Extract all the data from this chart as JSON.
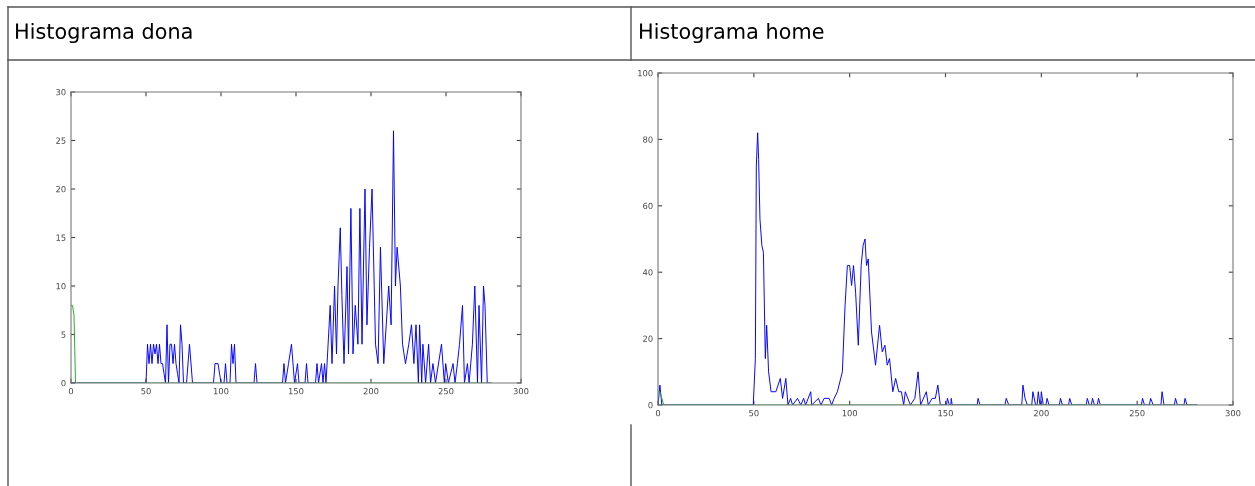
{
  "chart_data": [
    {
      "type": "line",
      "title": "Histograma dona",
      "xlim": [
        0,
        300
      ],
      "ylim": [
        0,
        30
      ],
      "xticks": [
        0,
        50,
        100,
        150,
        200,
        250,
        300
      ],
      "yticks": [
        0,
        5,
        10,
        15,
        20,
        25,
        30
      ],
      "grid": false,
      "series": [
        {
          "color": "#0000ff",
          "x": [
            0,
            50,
            51,
            52,
            53,
            54,
            55,
            56,
            57,
            58,
            59,
            60,
            61,
            62,
            63,
            64,
            65,
            66,
            67,
            68,
            69,
            70,
            71,
            72,
            73,
            74,
            75,
            77,
            79,
            81,
            95,
            96,
            98,
            100,
            102,
            103,
            104,
            106,
            107,
            108,
            109,
            110,
            122,
            123,
            124,
            141,
            142,
            143,
            145,
            147,
            149,
            151,
            152,
            156,
            157,
            158,
            163,
            164,
            165,
            167,
            168,
            169,
            170,
            172.8,
            174,
            175.7,
            177,
            178,
            179.5,
            180.6,
            182,
            184,
            185,
            186.6,
            188,
            189.5,
            191.3,
            192.6,
            194,
            196,
            197.3,
            199,
            200.7,
            203,
            204.7,
            206.3,
            208.5,
            211.8,
            213.4,
            215,
            216.3,
            217.4,
            219.6,
            221,
            223,
            225.2,
            227,
            228.6,
            230,
            231.6,
            232.4,
            233.8,
            234.6,
            236.4,
            238.4,
            239.7,
            241.3,
            243,
            247,
            248.9,
            249.8,
            251.6,
            254.7,
            256,
            257.6,
            259,
            261,
            262.3,
            264.3,
            265.4,
            267.6,
            269.2,
            271,
            272,
            273.7,
            275,
            276,
            277.5,
            280
          ],
          "values": [
            0,
            0,
            4,
            2,
            4,
            2,
            4,
            3,
            4,
            2,
            4,
            2,
            2,
            1,
            0,
            6,
            0,
            4,
            4,
            2,
            4,
            2,
            1,
            0,
            6,
            4,
            0,
            0,
            4,
            0,
            0,
            2,
            2,
            0,
            0,
            2,
            0,
            0,
            4,
            2,
            4,
            0,
            0,
            2,
            0,
            0,
            2,
            0,
            2,
            4,
            0,
            2,
            0,
            0,
            2,
            0,
            0,
            2,
            0,
            2,
            0,
            2,
            0,
            8,
            2,
            10,
            3,
            10,
            16,
            9,
            2,
            12,
            3,
            18,
            3,
            8,
            4,
            18,
            4,
            20,
            6,
            14,
            20,
            4,
            2,
            14,
            2,
            10,
            6,
            26,
            10,
            14,
            10,
            4,
            2,
            4,
            6,
            2,
            6,
            0,
            6,
            0,
            4,
            0,
            4,
            0,
            2,
            0,
            4,
            0,
            2,
            0,
            2,
            0,
            2,
            4,
            8,
            0,
            2,
            0,
            4,
            10,
            0,
            8,
            0,
            10,
            8,
            0,
            0
          ]
        },
        {
          "color": "#22aa22",
          "x": [
            0,
            1,
            2,
            3,
            278
          ],
          "values": [
            8,
            8,
            7,
            0,
            0
          ]
        }
      ]
    },
    {
      "type": "line",
      "title": "Histograma home",
      "xlim": [
        0,
        300
      ],
      "ylim": [
        0,
        100
      ],
      "xticks": [
        0,
        50,
        100,
        150,
        200,
        250,
        300
      ],
      "yticks": [
        0,
        20,
        40,
        60,
        80,
        100
      ],
      "grid": false,
      "series": [
        {
          "color": "#0000ff",
          "x": [
            0,
            1,
            2,
            49.7,
            50.8,
            51.3,
            52,
            52.5,
            53.2,
            54.2,
            55,
            56,
            56.7,
            57.7,
            59,
            61.5,
            63.8,
            65,
            66.7,
            67.8,
            69.2,
            70.2,
            72.8,
            74.5,
            76,
            77,
            79.7,
            80.2,
            83.7,
            85,
            86.7,
            89.3,
            90.6,
            91.9,
            93.6,
            96.2,
            97.6,
            98.8,
            100,
            101,
            102,
            103.1,
            104.5,
            106,
            107,
            108,
            108.8,
            109.7,
            111.4,
            113.5,
            115.6,
            117,
            118.4,
            119.6,
            120.8,
            122.5,
            124,
            125.6,
            127,
            128.2,
            129,
            131.7,
            134,
            135.7,
            137,
            140,
            141,
            143,
            144.7,
            146,
            147.3,
            150.5,
            151,
            152,
            152.8,
            153,
            153.5,
            166.5,
            167,
            168,
            181,
            181.7,
            183,
            189.8,
            190.4,
            191.5,
            192.7,
            195,
            195.6,
            197,
            197.8,
            198.4,
            199.3,
            199.6,
            200,
            201,
            202.4,
            203,
            204,
            209.4,
            210,
            211,
            214.2,
            214.8,
            215.9,
            223.4,
            224,
            225,
            226.1,
            226.7,
            227.7,
            229.2,
            229.8,
            230.8,
            252.2,
            252.8,
            253.8,
            256.4,
            257,
            258.4,
            262.4,
            263,
            264,
            269.4,
            270,
            271,
            274.4,
            275,
            276,
            281
          ],
          "values": [
            0,
            6,
            0,
            0,
            14,
            72,
            82,
            74,
            56,
            48,
            46,
            14,
            24,
            10,
            4,
            4,
            8,
            2,
            8,
            0,
            2,
            0,
            2,
            0,
            2,
            0,
            4,
            0,
            2,
            0,
            2,
            2,
            0,
            2,
            4,
            10,
            30,
            42,
            42,
            36,
            42,
            34,
            18,
            42,
            48,
            50,
            42,
            44,
            22,
            12,
            24,
            16,
            18,
            12,
            14,
            4,
            8,
            4,
            4,
            0,
            4,
            0,
            2,
            10,
            0,
            4,
            0,
            2,
            2,
            6,
            0,
            0,
            2,
            0,
            0,
            2,
            0,
            0,
            2,
            0,
            0,
            2,
            0,
            0,
            6,
            2,
            0,
            0,
            4,
            0,
            0,
            4,
            0,
            0,
            4,
            0,
            0,
            2,
            0,
            0,
            2,
            0,
            0,
            2,
            0,
            0,
            2,
            0,
            0,
            2,
            0,
            0,
            2,
            0,
            0,
            2,
            0,
            0,
            2,
            0,
            0,
            4,
            0,
            0,
            2,
            0,
            0,
            2,
            0,
            0
          ]
        },
        {
          "color": "#22aa22",
          "x": [
            0,
            1,
            2,
            3,
            281
          ],
          "values": [
            4,
            4,
            2,
            0,
            0
          ]
        }
      ]
    }
  ]
}
